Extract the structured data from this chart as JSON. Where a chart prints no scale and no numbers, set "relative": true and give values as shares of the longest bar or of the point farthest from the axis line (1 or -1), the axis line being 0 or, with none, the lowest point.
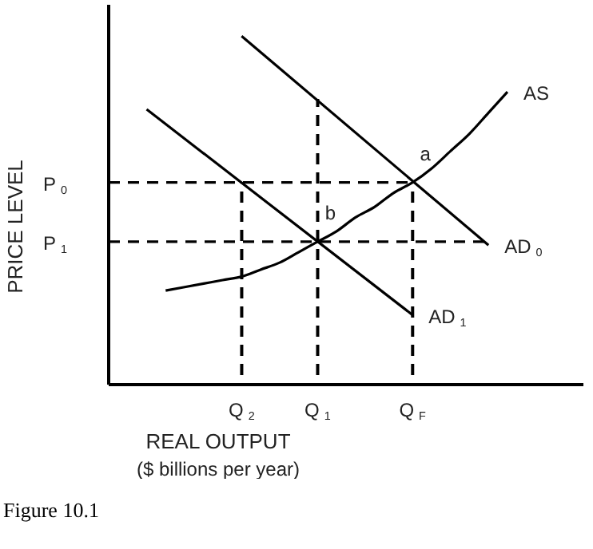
{
  "chart_data": {
    "type": "line",
    "relative": true,
    "xlabel": "REAL OUTPUT\n($ billions per year)",
    "ylabel": "PRICE LEVEL",
    "categories": [
      null,
      null,
      null,
      null,
      null,
      null,
      null,
      "Q$_{2}$",
      null,
      null,
      null,
      "Q$_{1}$",
      null,
      null,
      null,
      null,
      "Q$_{F}$",
      null,
      null,
      null,
      null,
      null,
      null,
      null,
      null,
      null
    ],
    "series": [
      {
        "name": "AS",
        "color": "#000000",
        "values": [
          null,
          null,
          null,
          0.27,
          0.28,
          0.29,
          0.3,
          0.31,
          0.33,
          0.35,
          0.38,
          0.41,
          0.44,
          0.48,
          0.51,
          0.55,
          0.58,
          0.62,
          0.67,
          0.72,
          0.78,
          0.84,
          null,
          null,
          null,
          null
        ]
      },
      {
        "name": "AD$_{0}$",
        "color": "#000000",
        "values": [
          null,
          null,
          null,
          null,
          null,
          null,
          null,
          1.0,
          null,
          null,
          null,
          null,
          null,
          null,
          null,
          null,
          null,
          null,
          null,
          null,
          0.4,
          null,
          null,
          null,
          null,
          null
        ]
      },
      {
        "name": "AD$_{1}$",
        "color": "#000000",
        "values": [
          null,
          null,
          0.79,
          null,
          null,
          null,
          null,
          null,
          null,
          null,
          null,
          null,
          null,
          null,
          null,
          null,
          0.2,
          null,
          null,
          null,
          null,
          null,
          null,
          null,
          null,
          null
        ]
      },
      {
        "name": "P$_{0}$",
        "color": "#000000",
        "line_style": "dashed",
        "values": [
          0.58,
          null,
          null,
          null,
          null,
          null,
          null,
          null,
          null,
          null,
          null,
          null,
          null,
          null,
          null,
          null,
          0.58,
          null,
          null,
          null,
          null,
          null,
          null,
          null,
          null,
          null
        ]
      },
      {
        "name": "P$_{1}$",
        "color": "#000000",
        "line_style": "dashed",
        "values": [
          0.41,
          null,
          null,
          null,
          null,
          null,
          null,
          null,
          null,
          null,
          null,
          null,
          null,
          null,
          null,
          null,
          null,
          null,
          null,
          null,
          0.41,
          null,
          null,
          null,
          null,
          null
        ]
      },
      {
        "type": "bar",
        "color": "#000000",
        "line_style": "dashed",
        "values": [
          null,
          null,
          null,
          null,
          null,
          null,
          null,
          0.58,
          null,
          null,
          null,
          0.82,
          null,
          null,
          null,
          null,
          0.58,
          null,
          null,
          null,
          null,
          null,
          null,
          null,
          null,
          null
        ]
      }
    ],
    "annotations": [
      {
        "text": "a",
        "x": "Q$_{F}$",
        "y": 0.58
      },
      {
        "text": "b",
        "x": "Q$_{1}$",
        "y": 0.41
      },
      "Figure 10.1"
    ],
    "legend": false,
    "grid": false
  }
}
